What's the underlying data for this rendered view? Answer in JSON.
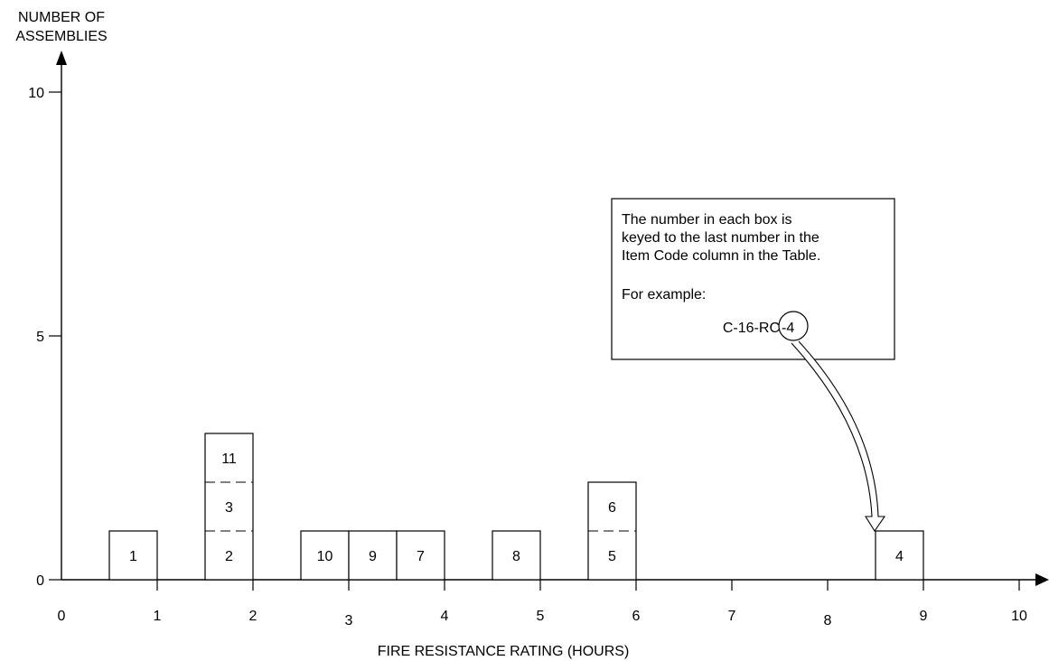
{
  "chart_data": {
    "type": "bar",
    "ylabel_lines": [
      "NUMBER OF",
      "ASSEMBLIES"
    ],
    "xlabel": "FIRE RESISTANCE RATING (HOURS)",
    "xlim": [
      0,
      10
    ],
    "ylim": [
      0,
      10
    ],
    "x_ticks": [
      {
        "value": 0,
        "label": "0"
      },
      {
        "value": 1,
        "label": "1"
      },
      {
        "value": 2,
        "label": "2"
      },
      {
        "value": 3,
        "label": "3"
      },
      {
        "value": 4,
        "label": "4"
      },
      {
        "value": 5,
        "label": "5"
      },
      {
        "value": 6,
        "label": "6"
      },
      {
        "value": 7,
        "label": "7"
      },
      {
        "value": 8,
        "label": "8"
      },
      {
        "value": 9,
        "label": "9"
      },
      {
        "value": 10,
        "label": "10"
      }
    ],
    "y_ticks": [
      {
        "value": 0,
        "label": "0"
      },
      {
        "value": 5,
        "label": "5"
      },
      {
        "value": 10,
        "label": "10"
      }
    ],
    "stacks": [
      {
        "x0": 0.5,
        "x1": 1.0,
        "items": [
          "1"
        ]
      },
      {
        "x0": 1.5,
        "x1": 2.0,
        "items": [
          "2",
          "3",
          "11"
        ]
      },
      {
        "x0": 2.5,
        "x1": 3.0,
        "items": [
          "10"
        ]
      },
      {
        "x0": 3.0,
        "x1": 3.5,
        "items": [
          "9"
        ]
      },
      {
        "x0": 3.5,
        "x1": 4.0,
        "items": [
          "7"
        ]
      },
      {
        "x0": 4.5,
        "x1": 5.0,
        "items": [
          "8"
        ]
      },
      {
        "x0": 5.5,
        "x1": 6.0,
        "items": [
          "5",
          "6"
        ]
      },
      {
        "x0": 8.5,
        "x1": 9.0,
        "items": [
          "4"
        ]
      }
    ],
    "annotation": {
      "lines": [
        "The number in each box is",
        "keyed to the last number in the",
        "Item Code column in the Table.",
        "",
        "For example:"
      ],
      "example_code_prefix": "C-16-RC",
      "example_code_suffix": "-4",
      "points_to_item": "4"
    }
  }
}
